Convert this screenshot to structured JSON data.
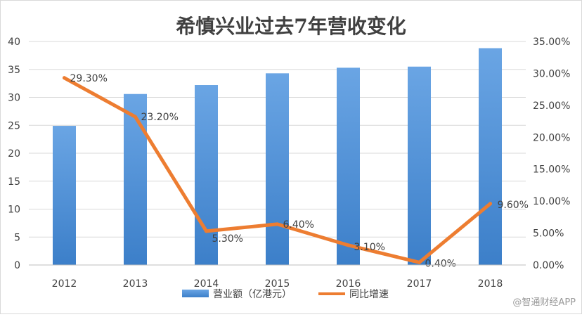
{
  "chart_data": {
    "type": "bar",
    "title": "希慎兴业过去7年营收变化",
    "categories": [
      "2012",
      "2013",
      "2014",
      "2015",
      "2016",
      "2017",
      "2018"
    ],
    "series": [
      {
        "name": "营业额（亿港元）",
        "type": "bar",
        "axis": "left",
        "color": "#4a8fd6",
        "values": [
          24.9,
          30.6,
          32.2,
          34.3,
          35.3,
          35.5,
          38.8
        ]
      },
      {
        "name": "同比增速",
        "type": "line",
        "axis": "right",
        "color": "#ed7d31",
        "values": [
          29.3,
          23.2,
          5.3,
          6.4,
          3.1,
          0.4,
          9.6
        ],
        "labels": [
          "29.30%",
          "23.20%",
          "5.30%",
          "6.40%",
          "3.10%",
          "0.40%",
          "9.60%"
        ]
      }
    ],
    "y_left": {
      "ylim": [
        0,
        40
      ],
      "ticks": [
        "0",
        "5",
        "10",
        "15",
        "20",
        "25",
        "30",
        "35",
        "40"
      ]
    },
    "y_right": {
      "ylim": [
        0,
        35
      ],
      "ticks": [
        "0.00%",
        "5.00%",
        "10.00%",
        "15.00%",
        "20.00%",
        "25.00%",
        "30.00%",
        "35.00%"
      ]
    },
    "grid": true,
    "legend_position": "bottom"
  },
  "watermark": "@智通财经APP"
}
